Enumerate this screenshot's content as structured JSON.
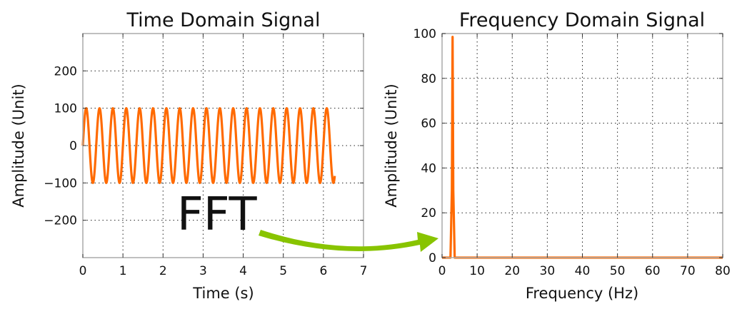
{
  "chart_data": [
    {
      "type": "line",
      "title": "Time Domain Signal",
      "xlabel": "Time (s)",
      "ylabel": "Amplitude (Unit)",
      "xlim": [
        0,
        7
      ],
      "ylim": [
        -300,
        300
      ],
      "xticks": [
        "0",
        "1",
        "2",
        "3",
        "4",
        "5",
        "6",
        "7"
      ],
      "yticks": [
        "−200",
        "−100",
        "0",
        "100",
        "200"
      ],
      "ytick_values": [
        -200,
        -100,
        0,
        100,
        200
      ],
      "grid": true,
      "series": [
        {
          "function": "sine",
          "amplitude": 100,
          "frequency_hz": 3,
          "x_start": 0,
          "x_end": 6.283,
          "samples": 1200,
          "color": "#ff6a00"
        }
      ]
    },
    {
      "type": "line",
      "title": "Frequency Domain Signal",
      "xlabel": "Frequency (Hz)",
      "ylabel": "Amplitude (Unit)",
      "xlim": [
        0,
        80
      ],
      "ylim": [
        0,
        100
      ],
      "xticks": [
        "0",
        "10",
        "20",
        "30",
        "40",
        "50",
        "60",
        "70",
        "80"
      ],
      "yticks": [
        "0",
        "20",
        "40",
        "60",
        "80",
        "100"
      ],
      "ytick_values": [
        0,
        20,
        40,
        60,
        80,
        100
      ],
      "grid": true,
      "series": [
        {
          "x": [
            0,
            2.4,
            2.8,
            3.0,
            3.2,
            3.6,
            80
          ],
          "y": [
            0,
            0,
            30,
            98.5,
            30,
            0,
            0
          ],
          "color": "#ff6a00"
        }
      ]
    }
  ],
  "annotation": {
    "text": "FFT",
    "arrow_color": "#88c400"
  }
}
